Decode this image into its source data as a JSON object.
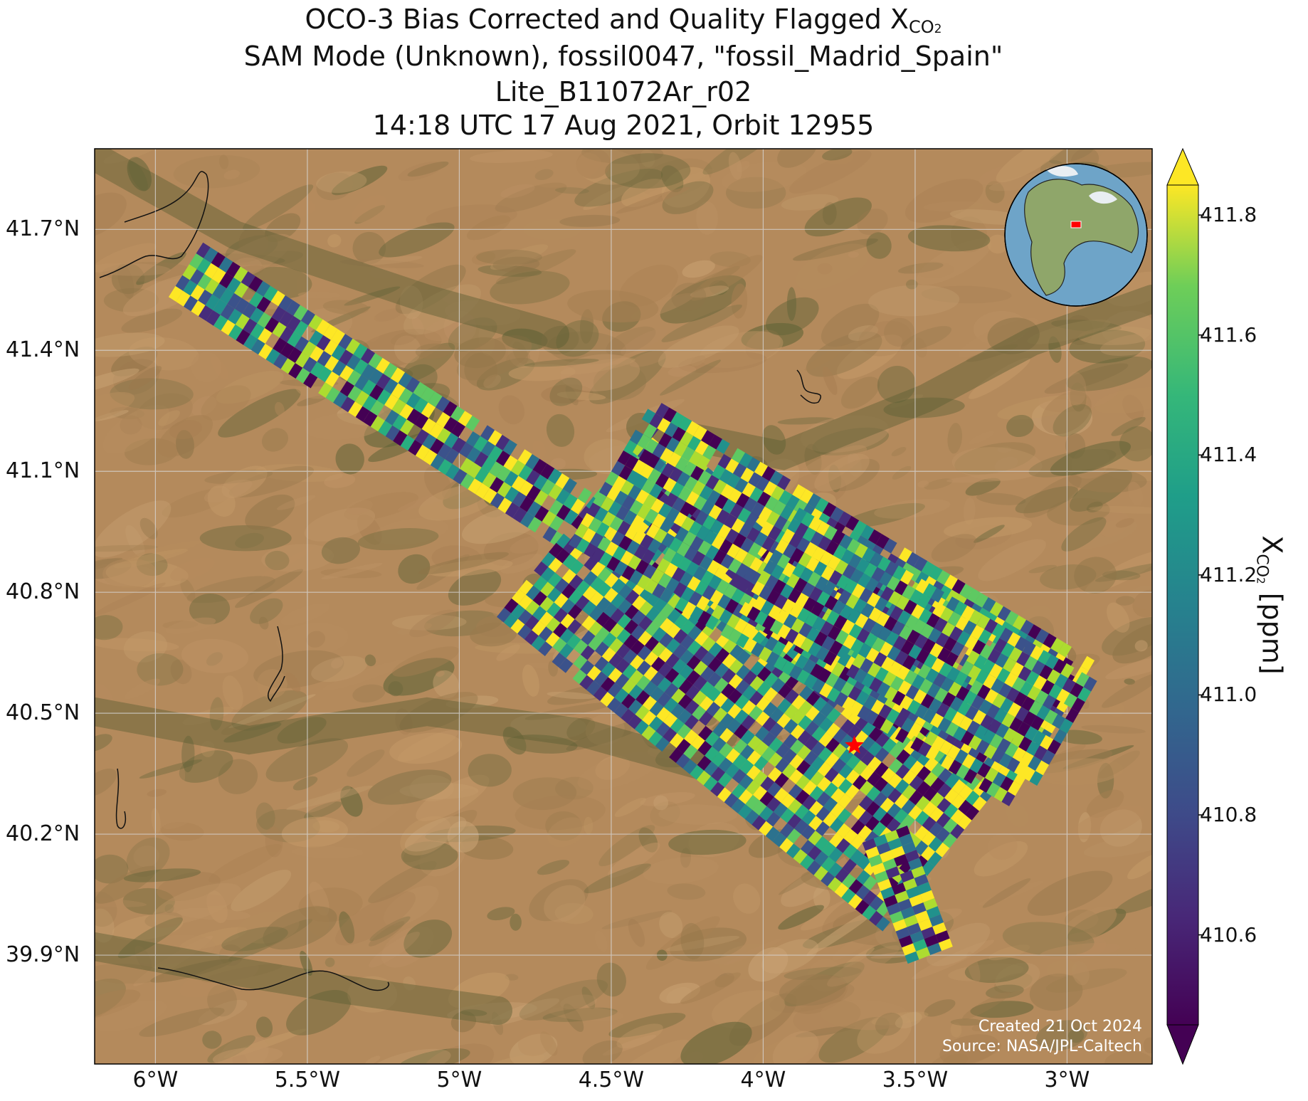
{
  "title": {
    "line1_prefix": "OCO-3 Bias Corrected and Quality Flagged X",
    "line1_subscript": "CO",
    "line1_subscript2": "2",
    "line2": "SAM Mode (Unknown), fossil0047, \"fossil_Madrid_Spain\"",
    "line3": "Lite_B11072Ar_r02",
    "line4": "14:18 UTC 17 Aug 2021, Orbit 12955"
  },
  "map": {
    "lon_range": [
      -6.2,
      -2.72
    ],
    "lat_range": [
      39.63,
      41.9
    ],
    "lon_ticks": [
      {
        "value": -6.0,
        "label": "6°W"
      },
      {
        "value": -5.5,
        "label": "5.5°W"
      },
      {
        "value": -5.0,
        "label": "5°W"
      },
      {
        "value": -4.5,
        "label": "4.5°W"
      },
      {
        "value": -4.0,
        "label": "4°W"
      },
      {
        "value": -3.5,
        "label": "3.5°W"
      },
      {
        "value": -3.0,
        "label": "3°W"
      }
    ],
    "lat_ticks": [
      {
        "value": 41.7,
        "label": "41.7°N"
      },
      {
        "value": 41.4,
        "label": "41.4°N"
      },
      {
        "value": 41.1,
        "label": "41.1°N"
      },
      {
        "value": 40.8,
        "label": "40.8°N"
      },
      {
        "value": 40.5,
        "label": "40.5°N"
      },
      {
        "value": 40.2,
        "label": "40.2°N"
      },
      {
        "value": 39.9,
        "label": "39.9°N"
      }
    ],
    "grid": true,
    "basemap": "satellite imagery",
    "target_marker": {
      "name": "fossil_Madrid_Spain",
      "lon": -3.7,
      "lat": 40.42,
      "color": "#ff0000",
      "symbol": "star"
    },
    "inset_globe": {
      "placement": "top-right",
      "marker_color": "#ff0000"
    },
    "credits": {
      "line1": "Created 21 Oct 2024",
      "line2": "Source: NASA/JPL-Caltech"
    }
  },
  "colorbar": {
    "label_prefix": "X",
    "label_subscript": "CO",
    "label_subscript2": "2",
    "label_suffix": " [ppm]",
    "range": [
      410.45,
      411.85
    ],
    "extend": "both",
    "colormap": "viridis",
    "ticks": [
      {
        "value": 411.8,
        "label": "411.8"
      },
      {
        "value": 411.6,
        "label": "411.6"
      },
      {
        "value": 411.4,
        "label": "411.4"
      },
      {
        "value": 411.2,
        "label": "411.2"
      },
      {
        "value": 411.0,
        "label": "411.0"
      },
      {
        "value": 410.8,
        "label": "410.8"
      },
      {
        "value": 410.6,
        "label": "410.6"
      }
    ]
  },
  "chart_data": {
    "type": "heatmap",
    "variable": "XCO2",
    "units": "ppm",
    "swaths": [
      {
        "start": [
          -5.9,
          41.6
        ],
        "end": [
          -4.62,
          40.98
        ],
        "width_deg": 0.16
      },
      {
        "start": [
          -4.62,
          40.98
        ],
        "end": [
          -3.35,
          40.2
        ],
        "width_deg": 0.62
      },
      {
        "start": [
          -4.5,
          41.1
        ],
        "end": [
          -3.05,
          40.45
        ],
        "width_deg": 0.42
      },
      {
        "start": [
          -3.98,
          40.88
        ],
        "end": [
          -3.0,
          40.45
        ],
        "width_deg": 0.3
      },
      {
        "start": [
          -3.6,
          40.2
        ],
        "end": [
          -3.45,
          39.9
        ],
        "width_deg": 0.12
      }
    ]
  }
}
